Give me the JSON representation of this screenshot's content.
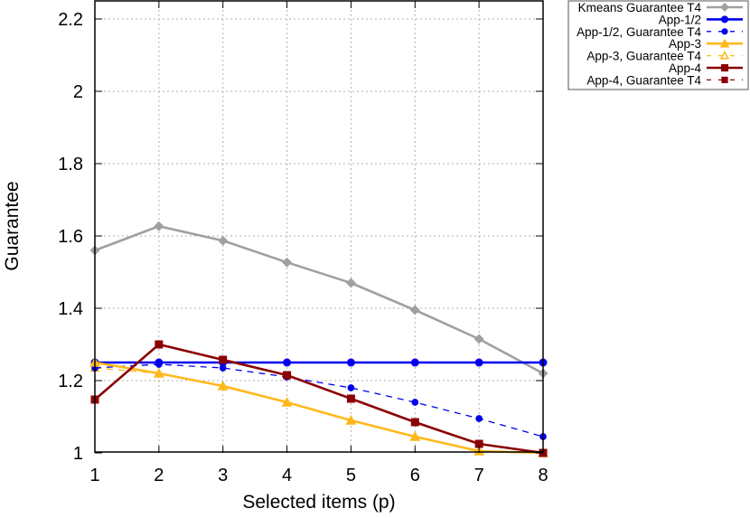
{
  "chart_data": {
    "type": "line",
    "title": "",
    "xlabel": "Selected items (p)",
    "ylabel": "Guarantee",
    "x": [
      1,
      2,
      3,
      4,
      5,
      6,
      7,
      8
    ],
    "xlim": [
      1,
      8
    ],
    "ylim": [
      1,
      2.25
    ],
    "xticks": [
      "1",
      "2",
      "3",
      "4",
      "5",
      "6",
      "7",
      "8"
    ],
    "yticks": [
      "1",
      "1.2",
      "1.4",
      "1.6",
      "1.8",
      "2",
      "2.2"
    ],
    "ytick_values": [
      1,
      1.2,
      1.4,
      1.6,
      1.8,
      2,
      2.2
    ],
    "grid": true,
    "legend_position": "outside-top-right",
    "series": [
      {
        "name": "Kmeans Guarantee T4",
        "color": "#a0a0a0",
        "dash": false,
        "marker": "diamond",
        "values": [
          1.56,
          1.627,
          1.587,
          1.527,
          1.47,
          1.395,
          1.315,
          1.22
        ]
      },
      {
        "name": "App-1/2",
        "color": "#0000ee",
        "dash": false,
        "marker": "circle",
        "values": [
          1.25,
          1.25,
          1.25,
          1.25,
          1.25,
          1.25,
          1.25,
          1.25
        ]
      },
      {
        "name": "App-1/2, Guarantee T4",
        "color": "#0000ee",
        "dash": true,
        "marker": "circle",
        "values": [
          1.235,
          1.245,
          1.235,
          1.21,
          1.18,
          1.14,
          1.095,
          1.045
        ]
      },
      {
        "name": "App-3",
        "color": "#ffb81c",
        "dash": false,
        "marker": "triangle",
        "values": [
          1.25,
          1.22,
          1.185,
          1.14,
          1.09,
          1.045,
          1.005,
          1.0
        ]
      },
      {
        "name": "App-3, Guarantee T4",
        "color": "#ffb81c",
        "dash": true,
        "marker": "triangle-open",
        "values": [
          1.235,
          1.22,
          1.185,
          1.14,
          1.09,
          1.045,
          1.005,
          1.0
        ]
      },
      {
        "name": "App-4",
        "color": "#8b0000",
        "dash": false,
        "marker": "square",
        "values": [
          1.1475,
          1.3,
          1.2575,
          1.215,
          1.15,
          1.085,
          1.025,
          1.0
        ]
      },
      {
        "name": "App-4, Guarantee T4",
        "color": "#8b0000",
        "dash": true,
        "marker": "square",
        "values": [
          1.1475,
          1.3,
          1.2575,
          1.215,
          1.15,
          1.085,
          1.025,
          1.0
        ]
      }
    ]
  }
}
